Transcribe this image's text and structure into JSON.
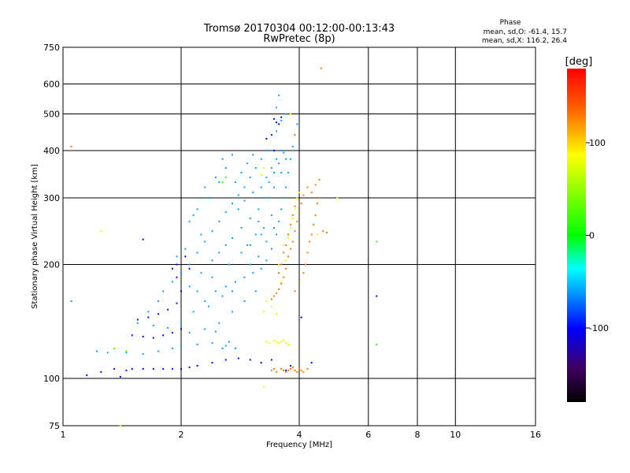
{
  "chart_data": {
    "type": "scatter",
    "title": "Tromsø 20170304 00:12:00-00:13:43",
    "subtitle": "RwPretec (8p)",
    "xlabel": "Frequency [MHz]",
    "ylabel": "Stationary phase Virtual Height [km]",
    "x_scale": "log",
    "y_scale": "log",
    "xlim": [
      1,
      16
    ],
    "ylim": [
      75,
      750
    ],
    "x_ticks": [
      1,
      2,
      4,
      6,
      8,
      10,
      16
    ],
    "y_ticks": [
      75,
      100,
      200,
      300,
      400,
      500,
      600,
      750
    ],
    "grid": true,
    "stats": {
      "title": "Phase",
      "line_o": "mean, sd,O: -61.4, 15.7",
      "line_x": "mean, sd,X: 116.2, 26.4"
    },
    "colorbar": {
      "label": "[deg]",
      "range": [
        -180,
        180
      ],
      "ticks": [
        100,
        0,
        -100
      ],
      "colors": [
        "#ff0000",
        "#ff8000",
        "#ffff00",
        "#00ff00",
        "#00ffff",
        "#0000ff",
        "#400060",
        "#000000"
      ]
    },
    "series": [
      {
        "phase_deg": -60,
        "points": [
          [
            1.05,
            160
          ],
          [
            1.22,
            118
          ],
          [
            1.3,
            117
          ],
          [
            1.45,
            117
          ],
          [
            1.6,
            116
          ],
          [
            1.75,
            118
          ],
          [
            1.9,
            120
          ],
          [
            2.0,
            122
          ],
          [
            2.2,
            123
          ],
          [
            2.4,
            124
          ],
          [
            2.6,
            122
          ],
          [
            2.75,
            120
          ],
          [
            1.55,
            140
          ],
          [
            1.7,
            138
          ],
          [
            1.85,
            136
          ],
          [
            2.0,
            140
          ],
          [
            2.15,
            150
          ],
          [
            2.3,
            160
          ],
          [
            2.45,
            170
          ],
          [
            2.6,
            175
          ],
          [
            2.75,
            180
          ],
          [
            2.9,
            185
          ],
          [
            3.05,
            190
          ],
          [
            3.2,
            195
          ],
          [
            3.3,
            205
          ],
          [
            3.4,
            220
          ],
          [
            3.5,
            240
          ],
          [
            3.55,
            260
          ],
          [
            3.6,
            280
          ],
          [
            3.65,
            300
          ],
          [
            3.7,
            320
          ],
          [
            3.75,
            350
          ],
          [
            3.8,
            380
          ],
          [
            3.85,
            410
          ],
          [
            3.9,
            440
          ],
          [
            3.95,
            470
          ],
          [
            3.5,
            520
          ],
          [
            3.55,
            560
          ],
          [
            1.9,
            180
          ],
          [
            2.0,
            190
          ],
          [
            2.1,
            200
          ],
          [
            2.2,
            215
          ],
          [
            2.3,
            230
          ],
          [
            2.4,
            245
          ],
          [
            2.5,
            260
          ],
          [
            2.6,
            275
          ],
          [
            2.7,
            290
          ],
          [
            2.8,
            305
          ],
          [
            2.9,
            320
          ],
          [
            3.0,
            340
          ],
          [
            3.1,
            360
          ],
          [
            3.2,
            380
          ],
          [
            3.3,
            400
          ],
          [
            2.1,
            260
          ],
          [
            2.2,
            280
          ],
          [
            2.35,
            300
          ],
          [
            2.5,
            330
          ],
          [
            2.6,
            360
          ],
          [
            2.7,
            390
          ],
          [
            2.55,
            380
          ],
          [
            2.45,
            340
          ],
          [
            2.3,
            320
          ],
          [
            2.25,
            300
          ],
          [
            2.15,
            270
          ],
          [
            1.95,
            210
          ],
          [
            2.05,
            220
          ],
          [
            2.25,
            240
          ],
          [
            2.85,
            250
          ],
          [
            3.0,
            265
          ],
          [
            3.15,
            280
          ],
          [
            3.35,
            300
          ],
          [
            3.45,
            320
          ],
          [
            3.6,
            350
          ],
          [
            3.7,
            380
          ],
          [
            2.95,
            225
          ],
          [
            3.1,
            240
          ],
          [
            3.25,
            250
          ],
          [
            3.4,
            270
          ],
          [
            1.8,
            170
          ],
          [
            1.75,
            160
          ],
          [
            1.65,
            150
          ],
          [
            2.2,
            170
          ],
          [
            2.4,
            185
          ],
          [
            2.65,
            200
          ],
          [
            2.85,
            215
          ],
          [
            3.0,
            200
          ],
          [
            3.15,
            210
          ],
          [
            3.3,
            230
          ],
          [
            3.45,
            250
          ],
          [
            2.1,
            132
          ],
          [
            2.3,
            135
          ],
          [
            2.5,
            140
          ],
          [
            2.7,
            150
          ],
          [
            2.9,
            160
          ],
          [
            3.1,
            170
          ],
          [
            2.55,
            120
          ],
          [
            2.65,
            125
          ],
          [
            2.45,
            133
          ],
          [
            2.35,
            155
          ],
          [
            2.55,
            165
          ],
          [
            2.7,
            170
          ],
          [
            3.2,
            320
          ],
          [
            3.3,
            340
          ],
          [
            3.4,
            360
          ],
          [
            3.5,
            380
          ],
          [
            3.6,
            400
          ],
          [
            3.25,
            300
          ],
          [
            3.35,
            330
          ],
          [
            3.45,
            350
          ],
          [
            3.55,
            370
          ],
          [
            3.65,
            395
          ],
          [
            2.75,
            330
          ],
          [
            2.85,
            350
          ],
          [
            2.95,
            370
          ],
          [
            3.05,
            390
          ],
          [
            2.8,
            280
          ],
          [
            2.9,
            295
          ],
          [
            3.05,
            310
          ],
          [
            3.15,
            260
          ],
          [
            3.2,
            240
          ],
          [
            3.0,
            225
          ],
          [
            2.1,
            175
          ],
          [
            2.25,
            190
          ],
          [
            2.4,
            205
          ],
          [
            2.5,
            215
          ],
          [
            2.6,
            225
          ],
          [
            2.7,
            235
          ],
          [
            3.5,
            450
          ],
          [
            3.6,
            480
          ],
          [
            3.7,
            500
          ]
        ]
      },
      {
        "phase_deg": -100,
        "points": [
          [
            1.15,
            102
          ],
          [
            1.25,
            104
          ],
          [
            1.35,
            106
          ],
          [
            1.4,
            101
          ],
          [
            1.45,
            105
          ],
          [
            1.5,
            106
          ],
          [
            1.6,
            106
          ],
          [
            1.7,
            106
          ],
          [
            1.8,
            106
          ],
          [
            1.9,
            106
          ],
          [
            2.0,
            106
          ],
          [
            2.1,
            107
          ],
          [
            2.2,
            108
          ],
          [
            2.4,
            110
          ],
          [
            2.6,
            112
          ],
          [
            2.8,
            113
          ],
          [
            3.0,
            112
          ],
          [
            3.2,
            110
          ],
          [
            1.5,
            130
          ],
          [
            1.6,
            129
          ],
          [
            1.7,
            128
          ],
          [
            1.8,
            130
          ],
          [
            1.9,
            132
          ],
          [
            2.0,
            135
          ],
          [
            1.55,
            143
          ],
          [
            1.65,
            145
          ],
          [
            1.75,
            148
          ],
          [
            1.85,
            152
          ],
          [
            1.95,
            158
          ],
          [
            2.0,
            170
          ],
          [
            1.95,
            185
          ],
          [
            1.9,
            195
          ],
          [
            1.95,
            200
          ],
          [
            2.05,
            210
          ],
          [
            2.1,
            195
          ],
          [
            1.6,
            233
          ],
          [
            3.3,
            430
          ],
          [
            3.4,
            440
          ],
          [
            3.5,
            475
          ],
          [
            3.45,
            485
          ],
          [
            3.6,
            490
          ],
          [
            3.55,
            470
          ],
          [
            3.45,
            400
          ],
          [
            4.05,
            145
          ],
          [
            4.3,
            110
          ],
          [
            6.3,
            165
          ],
          [
            3.7,
            105
          ],
          [
            3.8,
            108
          ],
          [
            3.4,
            112
          ]
        ]
      },
      {
        "phase_deg": 130,
        "points": [
          [
            3.9,
            170
          ],
          [
            4.0,
            180
          ],
          [
            4.1,
            190
          ],
          [
            4.15,
            200
          ],
          [
            4.2,
            215
          ],
          [
            4.25,
            230
          ],
          [
            4.3,
            240
          ],
          [
            4.35,
            255
          ],
          [
            4.4,
            270
          ],
          [
            4.45,
            290
          ],
          [
            4.5,
            300
          ],
          [
            4.3,
            310
          ],
          [
            4.2,
            320
          ],
          [
            4.1,
            305
          ],
          [
            4.05,
            290
          ],
          [
            4.0,
            275
          ],
          [
            3.95,
            260
          ],
          [
            3.9,
            245
          ],
          [
            3.85,
            230
          ],
          [
            3.8,
            220
          ],
          [
            3.75,
            210
          ],
          [
            3.7,
            195
          ],
          [
            3.65,
            185
          ],
          [
            3.6,
            178
          ],
          [
            3.55,
            172
          ],
          [
            3.5,
            168
          ],
          [
            3.45,
            165
          ],
          [
            3.4,
            162
          ],
          [
            3.55,
            190
          ],
          [
            3.6,
            200
          ],
          [
            3.65,
            215
          ],
          [
            3.7,
            225
          ],
          [
            3.75,
            240
          ],
          [
            3.8,
            255
          ],
          [
            3.85,
            270
          ],
          [
            3.9,
            285
          ],
          [
            3.95,
            300
          ],
          [
            4.4,
            325
          ],
          [
            4.5,
            335
          ],
          [
            4.6,
            245
          ],
          [
            4.7,
            243
          ],
          [
            3.6,
            106
          ],
          [
            3.65,
            105
          ],
          [
            3.7,
            104
          ],
          [
            3.75,
            105
          ],
          [
            3.8,
            106
          ],
          [
            3.85,
            107
          ],
          [
            3.9,
            105
          ],
          [
            3.95,
            104
          ],
          [
            4.0,
            106
          ],
          [
            4.05,
            105
          ],
          [
            4.1,
            104
          ],
          [
            4.2,
            106
          ],
          [
            3.4,
            105
          ],
          [
            3.45,
            106
          ],
          [
            3.5,
            104
          ],
          [
            4.55,
            660
          ],
          [
            1.05,
            410
          ],
          [
            3.9,
            440
          ]
        ]
      },
      {
        "phase_deg": 80,
        "points": [
          [
            3.3,
            125
          ],
          [
            3.35,
            124
          ],
          [
            3.45,
            126
          ],
          [
            3.5,
            125
          ],
          [
            3.55,
            124
          ],
          [
            3.6,
            125
          ],
          [
            3.65,
            126
          ],
          [
            3.7,
            124
          ],
          [
            3.75,
            123
          ],
          [
            3.5,
            148
          ],
          [
            3.4,
            155
          ],
          [
            3.25,
            150
          ],
          [
            3.3,
            160
          ],
          [
            3.6,
            180
          ],
          [
            3.55,
            200
          ],
          [
            3.7,
            205
          ],
          [
            3.65,
            225
          ],
          [
            3.75,
            235
          ],
          [
            3.8,
            250
          ],
          [
            3.85,
            265
          ],
          [
            3.9,
            280
          ],
          [
            3.95,
            300
          ],
          [
            4.0,
            310
          ],
          [
            4.45,
            240
          ],
          [
            5.0,
            300
          ],
          [
            3.2,
            345
          ],
          [
            3.25,
            360
          ],
          [
            3.8,
            500
          ],
          [
            3.25,
            95
          ],
          [
            1.25,
            245
          ],
          [
            1.4,
            75
          ]
        ]
      },
      {
        "phase_deg": 20,
        "points": [
          [
            1.35,
            120
          ],
          [
            1.45,
            118
          ],
          [
            2.55,
            330
          ],
          [
            2.6,
            340
          ],
          [
            6.3,
            230
          ],
          [
            6.3,
            123
          ]
        ]
      }
    ]
  }
}
